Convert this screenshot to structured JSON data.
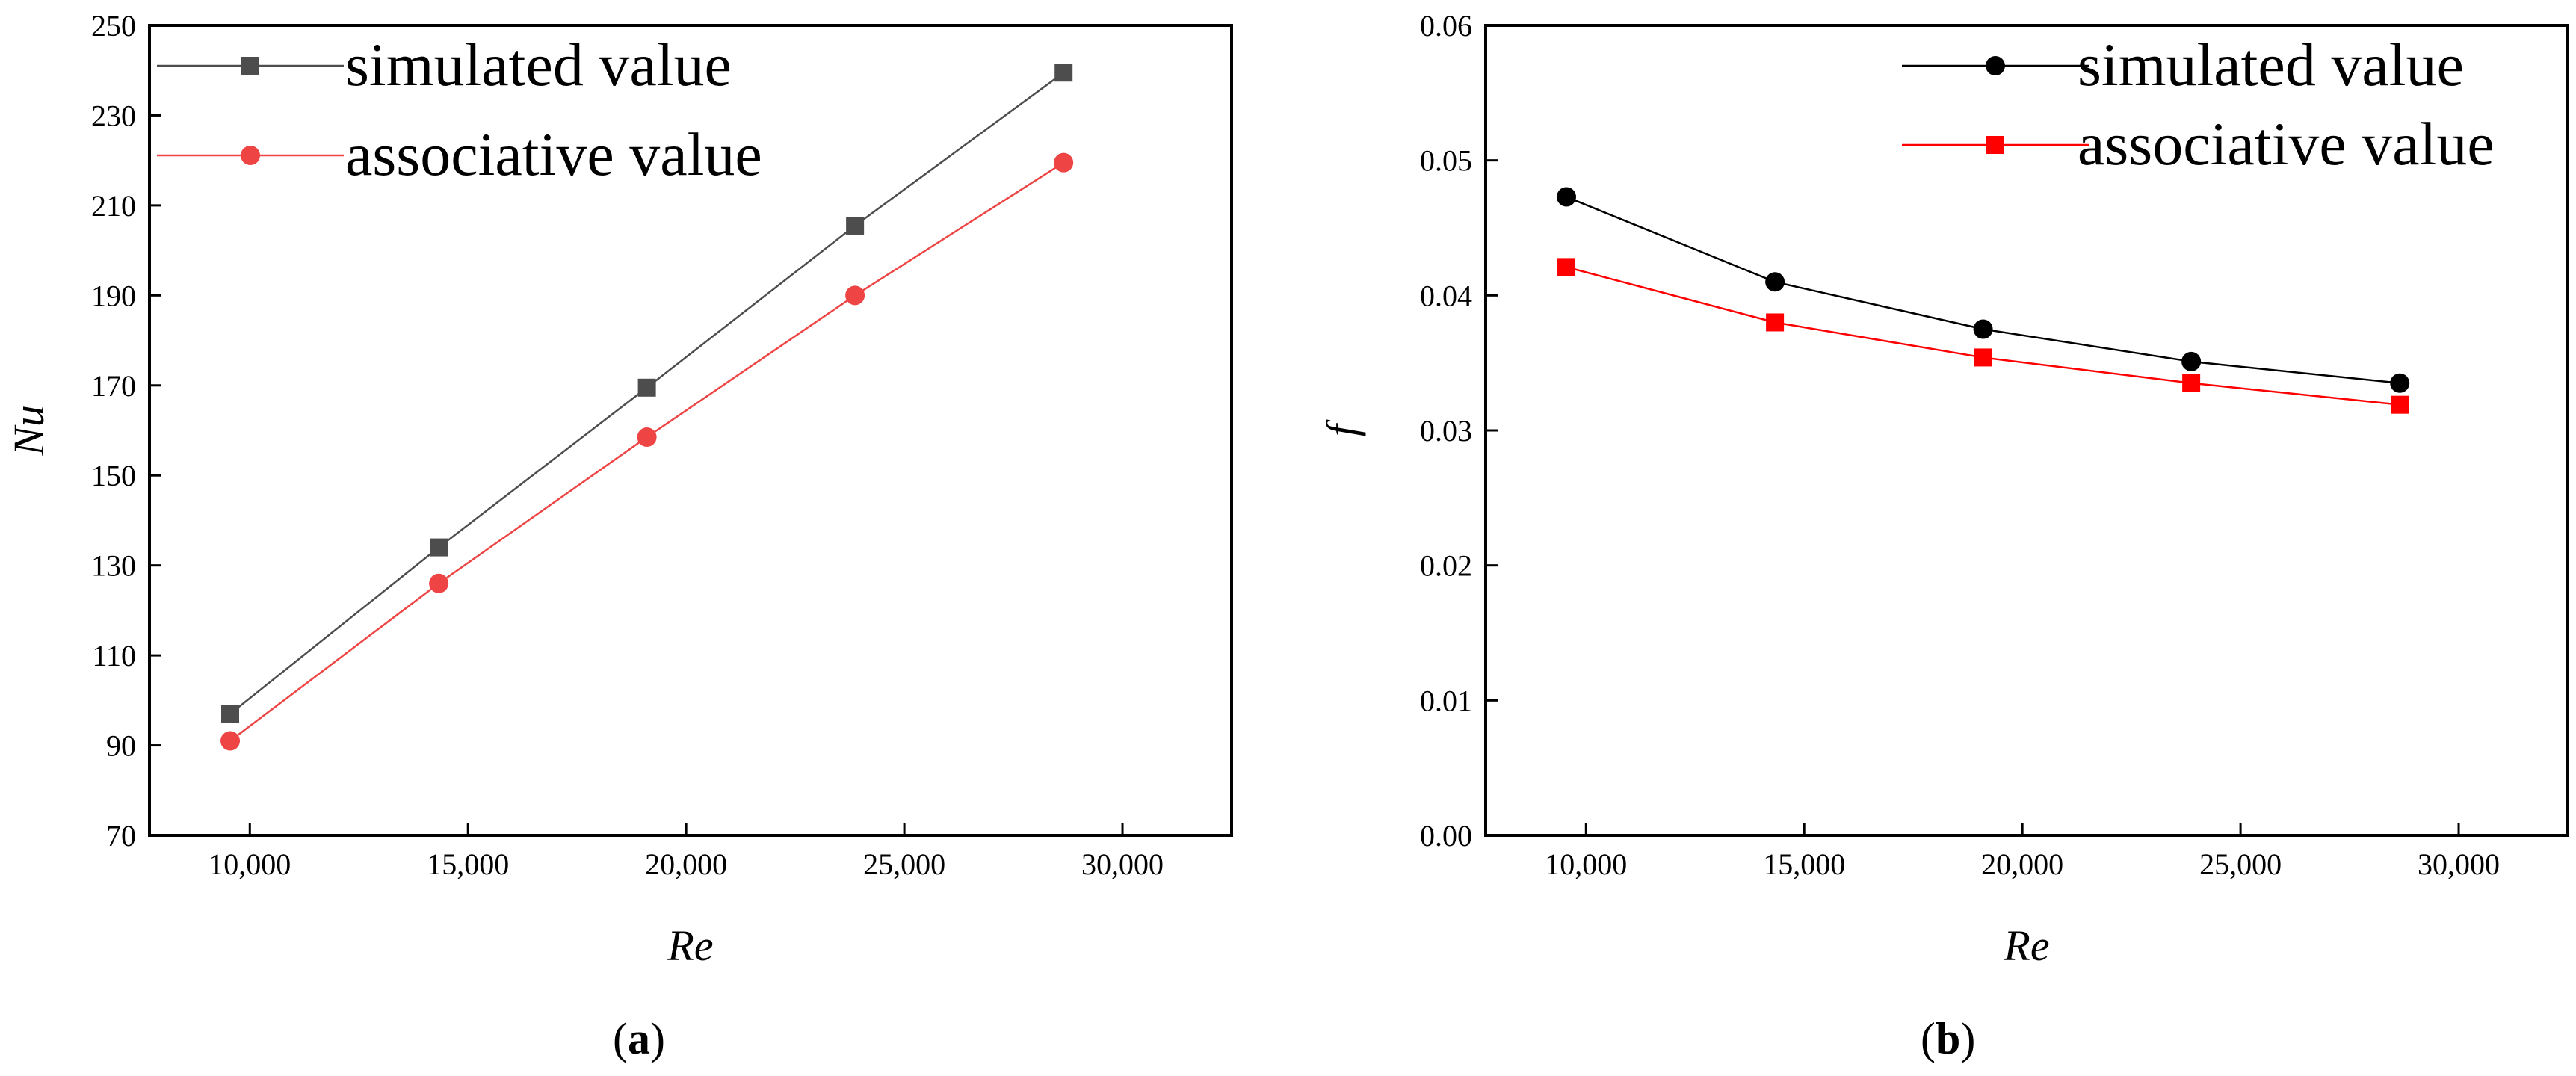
{
  "chart_data": [
    {
      "type": "line",
      "caption": "a",
      "xlabel": "Re",
      "ylabel": "Nu",
      "xlim": [
        7700,
        32500
      ],
      "ylim": [
        70,
        250
      ],
      "xticks": [
        10000,
        15000,
        20000,
        25000,
        30000
      ],
      "xtick_labels": [
        "10,000",
        "15,000",
        "20,000",
        "25,000",
        "30,000"
      ],
      "yticks": [
        70,
        90,
        110,
        130,
        150,
        170,
        190,
        210,
        230,
        250
      ],
      "ytick_labels": [
        "70",
        "90",
        "110",
        "130",
        "150",
        "170",
        "190",
        "210",
        "230",
        "250"
      ],
      "legend_position": "top-left",
      "x": [
        9550,
        14330,
        19100,
        23870,
        28650
      ],
      "series": [
        {
          "name": "simulated value",
          "values": [
            97,
            134,
            169.5,
            205.5,
            239.5
          ],
          "color": "#4d4d4d",
          "marker": "square"
        },
        {
          "name": "associative value",
          "values": [
            91,
            126,
            158.5,
            190,
            219.5
          ],
          "color": "#ee4444",
          "marker": "circle"
        }
      ]
    },
    {
      "type": "line",
      "caption": "b",
      "xlabel": "Re",
      "ylabel": "f",
      "xlim": [
        7700,
        32500
      ],
      "ylim": [
        0,
        0.06
      ],
      "xticks": [
        10000,
        15000,
        20000,
        25000,
        30000
      ],
      "xtick_labels": [
        "10,000",
        "15,000",
        "20,000",
        "25,000",
        "30,000"
      ],
      "yticks": [
        0,
        0.01,
        0.02,
        0.03,
        0.04,
        0.05,
        0.06
      ],
      "ytick_labels": [
        "0.00",
        "0.01",
        "0.02",
        "0.03",
        "0.04",
        "0.05",
        "0.06"
      ],
      "legend_position": "top-right",
      "x": [
        9550,
        14330,
        19100,
        23870,
        28650
      ],
      "series": [
        {
          "name": "simulated value",
          "values": [
            0.0473,
            0.041,
            0.0375,
            0.0351,
            0.0335
          ],
          "color": "#000000",
          "marker": "circle"
        },
        {
          "name": "associative value",
          "values": [
            0.0421,
            0.038,
            0.0354,
            0.0335,
            0.0319
          ],
          "color": "#ff0000",
          "marker": "square"
        }
      ]
    }
  ]
}
